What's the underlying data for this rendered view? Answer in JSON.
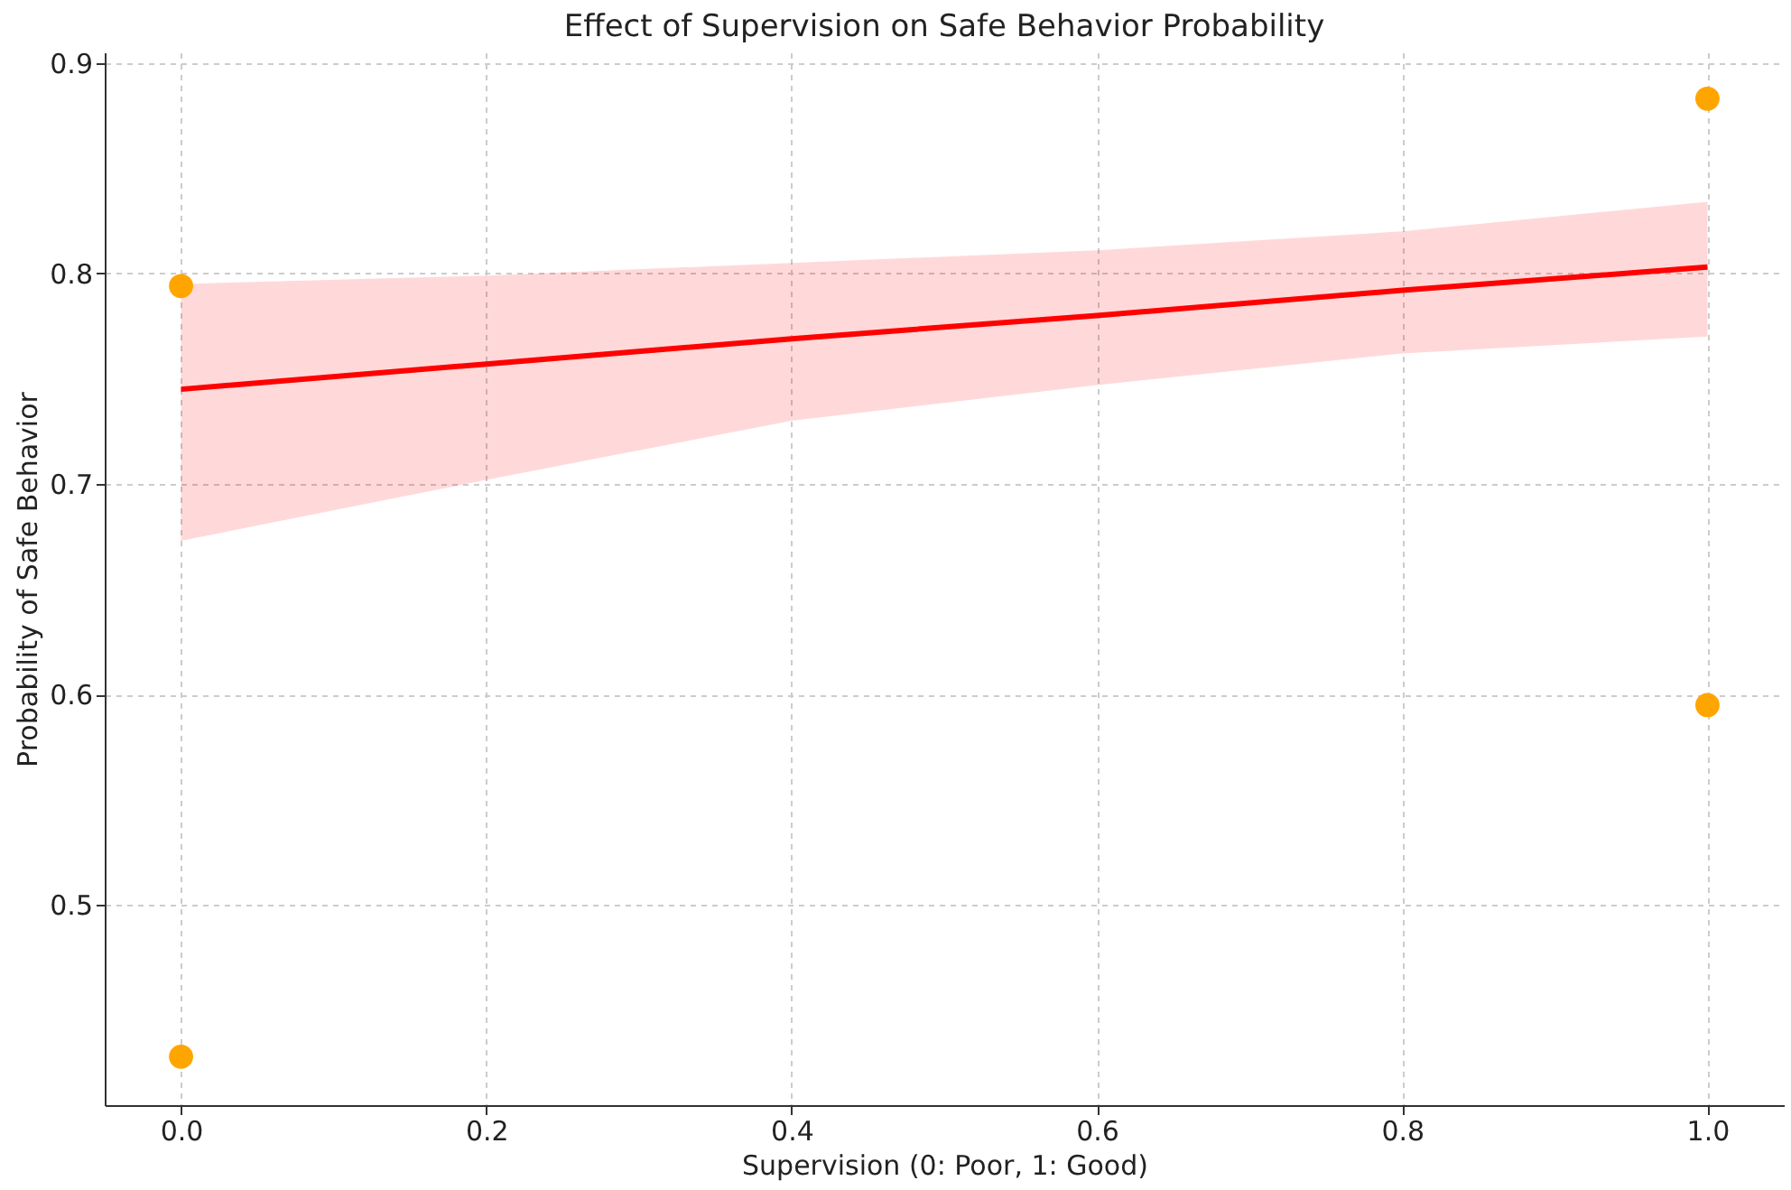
{
  "chart_data": {
    "type": "scatter",
    "title": "Effect of Supervision on Safe Behavior Probability",
    "xlabel": "Supervision (0: Poor, 1: Good)",
    "ylabel": "Probability of Safe Behavior",
    "series": [
      {
        "color": "#ffa500",
        "x": [
          0,
          0,
          1,
          1
        ],
        "values": [
          0.794,
          0.428,
          0.883,
          0.595
        ],
        "marker": "circle"
      },
      {
        "type": "line",
        "color": "#ff0000",
        "line_style": "solid",
        "x": [
          0,
          0.2,
          0.4,
          0.6,
          0.8,
          1
        ],
        "values": [
          0.745,
          0.757,
          0.769,
          0.78,
          0.792,
          0.803
        ],
        "lower": [
          0.673,
          0.702,
          0.73,
          0.747,
          0.762,
          0.77
        ],
        "upper": [
          0.795,
          0.799,
          0.805,
          0.811,
          0.82,
          0.834
        ]
      }
    ],
    "xlim": [
      -0.05,
      1.05
    ],
    "ylim": [
      0.405,
      0.905
    ],
    "xticks": [
      {
        "value": 0,
        "label": "0.0"
      },
      0.2,
      0.4,
      0.6,
      0.8,
      {
        "value": 1,
        "label": "1.0"
      }
    ],
    "yticks": [
      0.5,
      0.6,
      0.7,
      0.8,
      0.9
    ],
    "grid": true
  }
}
